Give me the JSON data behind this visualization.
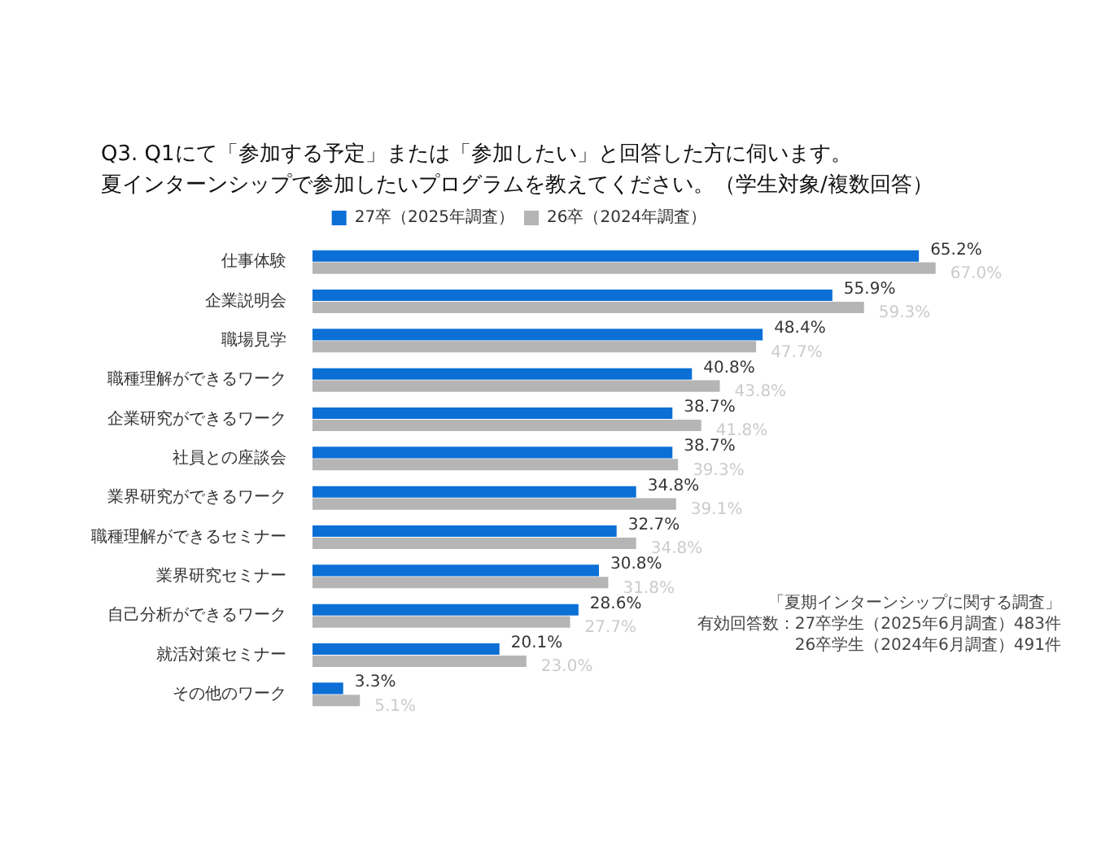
{
  "chart_data": {
    "type": "bar",
    "orientation": "horizontal",
    "title": "Q3. Q1にて「参加する予定」または「参加したい」と回答した方に伺います。夏インターンシップで参加したいプログラムを教えてください。（学生対象/複数回答）",
    "categories": [
      "仕事体験",
      "企業説明会",
      "職場見学",
      "職種理解ができるワーク",
      "企業研究ができるワーク",
      "社員との座談会",
      "業界研究ができるワーク",
      "職種理解ができるセミナー",
      "業界研究セミナー",
      "自己分析ができるワーク",
      "就活対策セミナー",
      "その他のワーク"
    ],
    "series": [
      {
        "name": "27卒（2025年調査）",
        "color": "#0b6fd6",
        "values": [
          65.2,
          55.9,
          48.4,
          40.8,
          38.7,
          38.7,
          34.8,
          32.7,
          30.8,
          28.6,
          20.1,
          3.3
        ],
        "value_labels": [
          "65.2%",
          "55.9%",
          "48.4%",
          "40.8%",
          "38.7%",
          "38.7%",
          "34.8%",
          "32.7%",
          "30.8%",
          "28.6%",
          "20.1%",
          "3.3%"
        ]
      },
      {
        "name": "26卒（2024年調査）",
        "color": "#b5b5b5",
        "values": [
          67.0,
          59.3,
          47.7,
          43.8,
          41.8,
          39.3,
          39.1,
          34.8,
          31.8,
          27.7,
          23.0,
          5.1
        ],
        "value_labels": [
          "67.0%",
          "59.3%",
          "47.7%",
          "43.8%",
          "41.8%",
          "39.3%",
          "39.1%",
          "34.8%",
          "31.8%",
          "27.7%",
          "23.0%",
          "5.1%"
        ]
      }
    ],
    "tick_labels": "y",
    "grid": false,
    "legend": "top",
    "annotations": [
      "「夏期インターンシップに関する調査」",
      "有効回答数：27卒学生（2025年6月調査）483件",
      "26卒学生（2024年6月調査）491件"
    ]
  }
}
